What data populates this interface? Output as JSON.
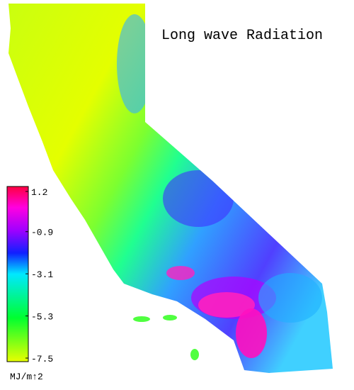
{
  "title": "Long wave Radiation",
  "colorbar": {
    "range": [
      -7.5,
      1.2
    ],
    "ticks": [
      1.2,
      -0.9,
      -3.1,
      -5.3,
      -7.5
    ],
    "unit": "MJ/m↑2"
  }
}
